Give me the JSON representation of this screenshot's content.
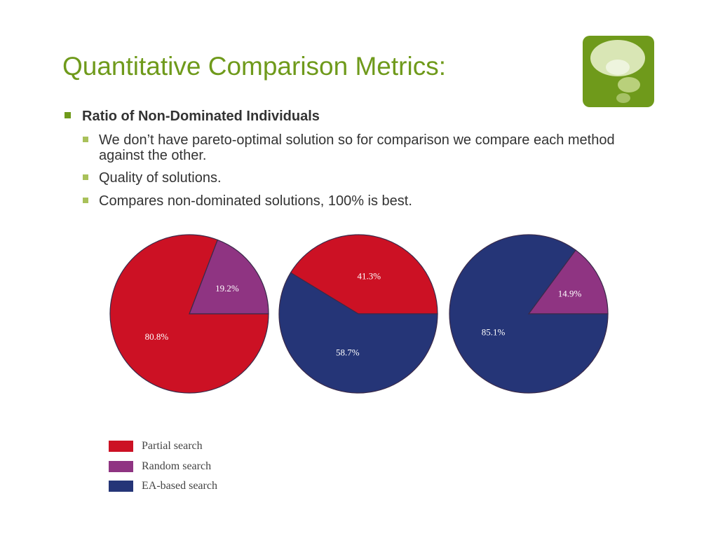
{
  "slide": {
    "title": "Quantitative Comparison Metrics:",
    "bullet_main": "Ratio of Non-Dominated Individuals",
    "sub_bullets": [
      "We don’t have pareto-optimal solution so for comparison we compare each method against the other.",
      "Quality of solutions.",
      "Compares non-dominated solutions, 100% is best."
    ],
    "logo_icon": "speech-bubbles-icon"
  },
  "colors": {
    "accent": "#6f9a1b",
    "partial": "#cc1124",
    "random": "#8f3482",
    "ea": "#253577"
  },
  "chart_data": [
    {
      "type": "pie",
      "slices": [
        {
          "name": "Random search",
          "value": 19.2,
          "label": "19.2%",
          "color": "#8f3482"
        },
        {
          "name": "Partial search",
          "value": 80.8,
          "label": "80.8%",
          "color": "#cc1124"
        }
      ]
    },
    {
      "type": "pie",
      "slices": [
        {
          "name": "Partial search",
          "value": 41.3,
          "label": "41.3%",
          "color": "#cc1124"
        },
        {
          "name": "EA-based search",
          "value": 58.7,
          "label": "58.7%",
          "color": "#253577"
        }
      ]
    },
    {
      "type": "pie",
      "slices": [
        {
          "name": "Random search",
          "value": 14.9,
          "label": "14.9%",
          "color": "#8f3482"
        },
        {
          "name": "EA-based search",
          "value": 85.1,
          "label": "85.1%",
          "color": "#253577"
        }
      ]
    }
  ],
  "legend": [
    {
      "label": "Partial search",
      "color": "#cc1124"
    },
    {
      "label": "Random search",
      "color": "#8f3482"
    },
    {
      "label": "EA-based search",
      "color": "#253577"
    }
  ]
}
